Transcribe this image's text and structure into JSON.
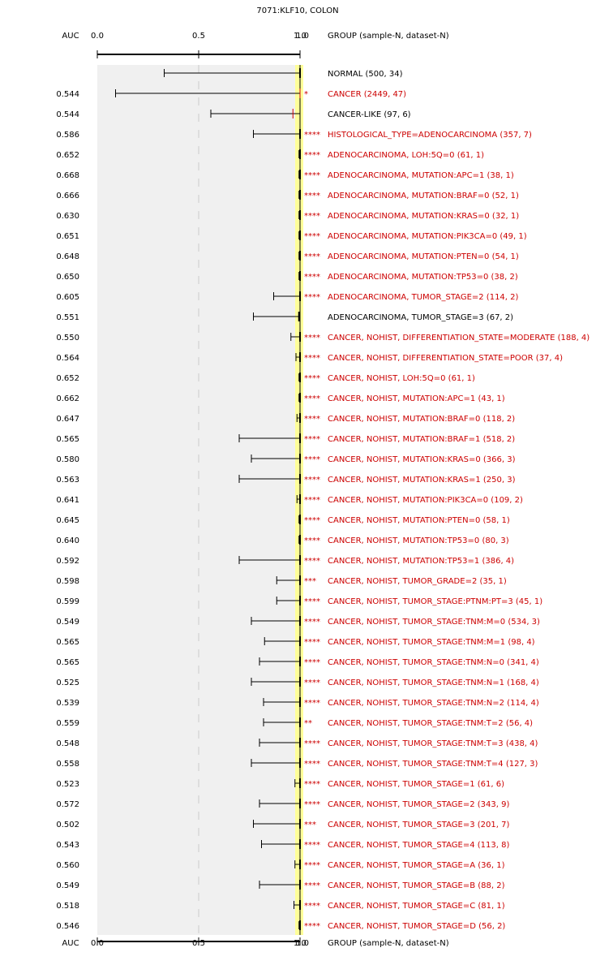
{
  "chart_data": {
    "type": "forest",
    "title": "7071:KLF10, COLON",
    "auc_header": "AUC",
    "group_header": "GROUP (sample-N, dataset-N)",
    "x_ticks": [
      "0.0",
      "0.5",
      "1.0"
    ],
    "x_tick_overlap": "1.0",
    "xlim": [
      0.0,
      1.0
    ],
    "reference_line": 1.0,
    "colors": {
      "significant": "#cc0000",
      "normal": "#000000",
      "panel": "#f0f0f0",
      "highlight": "#ffff99"
    },
    "rows": [
      {
        "auc": "",
        "label": "NORMAL (500, 34)",
        "stars": "",
        "red": false,
        "low": 0.33,
        "center": 1.0,
        "high": 1.0,
        "marker": "tick"
      },
      {
        "auc": "0.544",
        "label": "CANCER (2449, 47)",
        "stars": "*",
        "red": true,
        "low": 0.09,
        "center": 1.0,
        "high": 1.0,
        "marker": "red"
      },
      {
        "auc": "0.544",
        "label": "CANCER-LIKE (97, 6)",
        "stars": "",
        "red": false,
        "low": 0.56,
        "center": 0.965,
        "high": 1.0,
        "marker": "red"
      },
      {
        "auc": "0.586",
        "label": "HISTOLOGICAL_TYPE=ADENOCARCINOMA (357, 7)",
        "stars": "****",
        "red": true,
        "low": 0.77,
        "center": 1.0,
        "high": 1.0,
        "marker": "tick"
      },
      {
        "auc": "0.652",
        "label": "ADENOCARCINOMA, LOH:5Q=0 (61, 1)",
        "stars": "****",
        "red": true,
        "low": 0.995,
        "center": 1.0,
        "high": 1.0,
        "marker": "tick"
      },
      {
        "auc": "0.668",
        "label": "ADENOCARCINOMA, MUTATION:APC=1 (38, 1)",
        "stars": "****",
        "red": true,
        "low": 0.995,
        "center": 1.0,
        "high": 1.0,
        "marker": "tick"
      },
      {
        "auc": "0.666",
        "label": "ADENOCARCINOMA, MUTATION:BRAF=0 (52, 1)",
        "stars": "****",
        "red": true,
        "low": 0.995,
        "center": 1.0,
        "high": 1.0,
        "marker": "tick"
      },
      {
        "auc": "0.630",
        "label": "ADENOCARCINOMA, MUTATION:KRAS=0 (32, 1)",
        "stars": "****",
        "red": true,
        "low": 0.995,
        "center": 1.0,
        "high": 1.0,
        "marker": "tick"
      },
      {
        "auc": "0.651",
        "label": "ADENOCARCINOMA, MUTATION:PIK3CA=0 (49, 1)",
        "stars": "****",
        "red": true,
        "low": 0.995,
        "center": 1.0,
        "high": 1.0,
        "marker": "tick"
      },
      {
        "auc": "0.648",
        "label": "ADENOCARCINOMA, MUTATION:PTEN=0 (54, 1)",
        "stars": "****",
        "red": true,
        "low": 0.995,
        "center": 1.0,
        "high": 1.0,
        "marker": "tick"
      },
      {
        "auc": "0.650",
        "label": "ADENOCARCINOMA, MUTATION:TP53=0 (38, 2)",
        "stars": "****",
        "red": true,
        "low": 0.995,
        "center": 1.0,
        "high": 1.0,
        "marker": "tick"
      },
      {
        "auc": "0.605",
        "label": "ADENOCARCINOMA, TUMOR_STAGE=2 (114, 2)",
        "stars": "****",
        "red": true,
        "low": 0.87,
        "center": 1.0,
        "high": 1.0,
        "marker": "tick"
      },
      {
        "auc": "0.551",
        "label": "ADENOCARCINOMA, TUMOR_STAGE=3 (67, 2)",
        "stars": "",
        "red": false,
        "low": 0.77,
        "center": 0.995,
        "high": 1.0,
        "marker": "tick"
      },
      {
        "auc": "0.550",
        "label": "CANCER, NOHIST, DIFFERENTIATION_STATE=MODERATE (188, 4)",
        "stars": "****",
        "red": true,
        "low": 0.955,
        "center": 1.0,
        "high": 1.0,
        "marker": "tick"
      },
      {
        "auc": "0.564",
        "label": "CANCER, NOHIST, DIFFERENTIATION_STATE=POOR (37, 4)",
        "stars": "****",
        "red": true,
        "low": 0.98,
        "center": 1.0,
        "high": 1.0,
        "marker": "tick"
      },
      {
        "auc": "0.652",
        "label": "CANCER, NOHIST, LOH:5Q=0 (61, 1)",
        "stars": "****",
        "red": true,
        "low": 0.995,
        "center": 1.0,
        "high": 1.0,
        "marker": "tick"
      },
      {
        "auc": "0.662",
        "label": "CANCER, NOHIST, MUTATION:APC=1 (43, 1)",
        "stars": "****",
        "red": true,
        "low": 0.995,
        "center": 1.0,
        "high": 1.0,
        "marker": "tick"
      },
      {
        "auc": "0.647",
        "label": "CANCER, NOHIST, MUTATION:BRAF=0 (118, 2)",
        "stars": "****",
        "red": true,
        "low": 0.985,
        "center": 1.0,
        "high": 1.0,
        "marker": "tick"
      },
      {
        "auc": "0.565",
        "label": "CANCER, NOHIST, MUTATION:BRAF=1 (518, 2)",
        "stars": "****",
        "red": true,
        "low": 0.7,
        "center": 1.0,
        "high": 1.0,
        "marker": "tick"
      },
      {
        "auc": "0.580",
        "label": "CANCER, NOHIST, MUTATION:KRAS=0 (366, 3)",
        "stars": "****",
        "red": true,
        "low": 0.76,
        "center": 1.0,
        "high": 1.0,
        "marker": "tick"
      },
      {
        "auc": "0.563",
        "label": "CANCER, NOHIST, MUTATION:KRAS=1 (250, 3)",
        "stars": "****",
        "red": true,
        "low": 0.7,
        "center": 1.0,
        "high": 1.0,
        "marker": "tick"
      },
      {
        "auc": "0.641",
        "label": "CANCER, NOHIST, MUTATION:PIK3CA=0 (109, 2)",
        "stars": "****",
        "red": true,
        "low": 0.985,
        "center": 1.0,
        "high": 1.0,
        "marker": "tick"
      },
      {
        "auc": "0.645",
        "label": "CANCER, NOHIST, MUTATION:PTEN=0 (58, 1)",
        "stars": "****",
        "red": true,
        "low": 0.995,
        "center": 1.0,
        "high": 1.0,
        "marker": "tick"
      },
      {
        "auc": "0.640",
        "label": "CANCER, NOHIST, MUTATION:TP53=0 (80, 3)",
        "stars": "****",
        "red": true,
        "low": 0.995,
        "center": 1.0,
        "high": 1.0,
        "marker": "tick"
      },
      {
        "auc": "0.592",
        "label": "CANCER, NOHIST, MUTATION:TP53=1 (386, 4)",
        "stars": "****",
        "red": true,
        "low": 0.7,
        "center": 1.0,
        "high": 1.0,
        "marker": "tick"
      },
      {
        "auc": "0.598",
        "label": "CANCER, NOHIST, TUMOR_GRADE=2 (35, 1)",
        "stars": "***",
        "red": true,
        "low": 0.885,
        "center": 1.0,
        "high": 1.0,
        "marker": "tick"
      },
      {
        "auc": "0.599",
        "label": "CANCER, NOHIST, TUMOR_STAGE:PTNM:PT=3 (45, 1)",
        "stars": "****",
        "red": true,
        "low": 0.885,
        "center": 1.0,
        "high": 1.0,
        "marker": "tick"
      },
      {
        "auc": "0.549",
        "label": "CANCER, NOHIST, TUMOR_STAGE:TNM:M=0 (534, 3)",
        "stars": "****",
        "red": true,
        "low": 0.76,
        "center": 1.0,
        "high": 1.0,
        "marker": "tick"
      },
      {
        "auc": "0.565",
        "label": "CANCER, NOHIST, TUMOR_STAGE:TNM:M=1 (98, 4)",
        "stars": "****",
        "red": true,
        "low": 0.825,
        "center": 1.0,
        "high": 1.0,
        "marker": "tick"
      },
      {
        "auc": "0.565",
        "label": "CANCER, NOHIST, TUMOR_STAGE:TNM:N=0 (341, 4)",
        "stars": "****",
        "red": true,
        "low": 0.8,
        "center": 1.0,
        "high": 1.0,
        "marker": "tick"
      },
      {
        "auc": "0.525",
        "label": "CANCER, NOHIST, TUMOR_STAGE:TNM:N=1 (168, 4)",
        "stars": "****",
        "red": true,
        "low": 0.76,
        "center": 1.0,
        "high": 1.0,
        "marker": "tick"
      },
      {
        "auc": "0.539",
        "label": "CANCER, NOHIST, TUMOR_STAGE:TNM:N=2 (114, 4)",
        "stars": "****",
        "red": true,
        "low": 0.82,
        "center": 1.0,
        "high": 1.0,
        "marker": "tick"
      },
      {
        "auc": "0.559",
        "label": "CANCER, NOHIST, TUMOR_STAGE:TNM:T=2 (56, 4)",
        "stars": "**",
        "red": true,
        "low": 0.82,
        "center": 1.0,
        "high": 1.0,
        "marker": "tick"
      },
      {
        "auc": "0.548",
        "label": "CANCER, NOHIST, TUMOR_STAGE:TNM:T=3 (438, 4)",
        "stars": "****",
        "red": true,
        "low": 0.8,
        "center": 1.0,
        "high": 1.0,
        "marker": "tick"
      },
      {
        "auc": "0.558",
        "label": "CANCER, NOHIST, TUMOR_STAGE:TNM:T=4 (127, 3)",
        "stars": "****",
        "red": true,
        "low": 0.76,
        "center": 1.0,
        "high": 1.0,
        "marker": "tick"
      },
      {
        "auc": "0.523",
        "label": "CANCER, NOHIST, TUMOR_STAGE=1 (61, 6)",
        "stars": "****",
        "red": true,
        "low": 0.975,
        "center": 1.0,
        "high": 1.0,
        "marker": "tick"
      },
      {
        "auc": "0.572",
        "label": "CANCER, NOHIST, TUMOR_STAGE=2 (343, 9)",
        "stars": "****",
        "red": true,
        "low": 0.8,
        "center": 1.0,
        "high": 1.0,
        "marker": "tick"
      },
      {
        "auc": "0.502",
        "label": "CANCER, NOHIST, TUMOR_STAGE=3 (201, 7)",
        "stars": "***",
        "red": true,
        "low": 0.77,
        "center": 1.0,
        "high": 1.0,
        "marker": "tick"
      },
      {
        "auc": "0.543",
        "label": "CANCER, NOHIST, TUMOR_STAGE=4 (113, 8)",
        "stars": "****",
        "red": true,
        "low": 0.81,
        "center": 1.0,
        "high": 1.0,
        "marker": "tick"
      },
      {
        "auc": "0.560",
        "label": "CANCER, NOHIST, TUMOR_STAGE=A (36, 1)",
        "stars": "****",
        "red": true,
        "low": 0.975,
        "center": 1.0,
        "high": 1.0,
        "marker": "tick"
      },
      {
        "auc": "0.549",
        "label": "CANCER, NOHIST, TUMOR_STAGE=B (88, 2)",
        "stars": "****",
        "red": true,
        "low": 0.8,
        "center": 1.0,
        "high": 1.0,
        "marker": "tick"
      },
      {
        "auc": "0.518",
        "label": "CANCER, NOHIST, TUMOR_STAGE=C (81, 1)",
        "stars": "****",
        "red": true,
        "low": 0.97,
        "center": 1.0,
        "high": 1.0,
        "marker": "tick"
      },
      {
        "auc": "0.546",
        "label": "CANCER, NOHIST, TUMOR_STAGE=D (56, 2)",
        "stars": "****",
        "red": true,
        "low": 0.995,
        "center": 1.0,
        "high": 1.0,
        "marker": "tick"
      }
    ]
  }
}
